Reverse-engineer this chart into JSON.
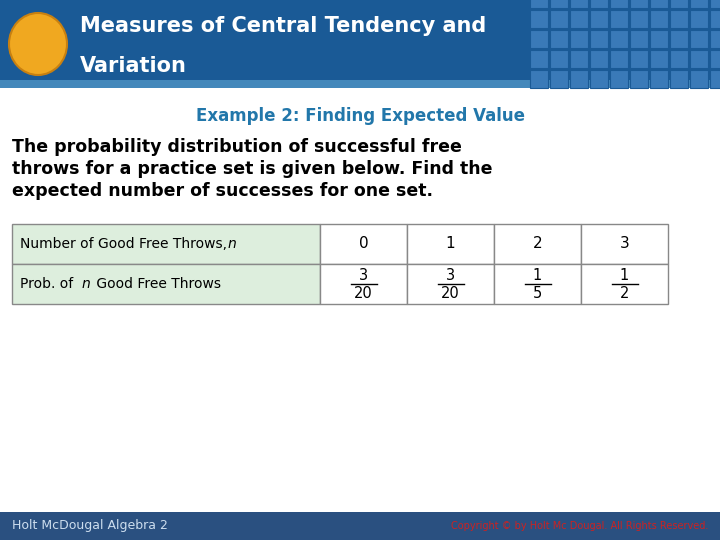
{
  "title_line1": "Measures of Central Tendency and",
  "title_line2": "Variation",
  "header_bg": "#1a5a96",
  "header_text_color": "#ffffff",
  "oval_color": "#f0a820",
  "oval_edge_color": "#c88010",
  "subtitle": "Example 2: Finding Expected Value",
  "subtitle_color": "#2277aa",
  "body_text_line1": "The probability distribution of successful free",
  "body_text_line2": "throws for a practice set is given below. Find the",
  "body_text_line3": "expected number of successes for one set.",
  "body_text_color": "#000000",
  "bg_color": "#ffffff",
  "footer_bg": "#2a5080",
  "footer_text": "Holt McDougal Algebra 2",
  "footer_text_color": "#ccddee",
  "copyright_text": "Copyright © by Holt Mc Dougal. All Rights Reserved.",
  "copyright_color": "#cc2222",
  "table_header_row_nums": [
    "0",
    "1",
    "2",
    "3"
  ],
  "table_bg_light": "#ddeedd",
  "table_border_color": "#888888",
  "table_fractions": [
    [
      "3",
      "20"
    ],
    [
      "3",
      "20"
    ],
    [
      "1",
      "5"
    ],
    [
      "1",
      "2"
    ]
  ],
  "grid_color_light": "#3a7ab8",
  "grid_color_dark": "#1a5a96"
}
